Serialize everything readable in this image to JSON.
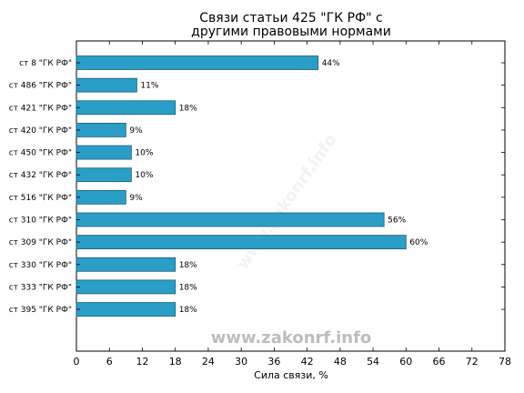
{
  "chart_data": {
    "type": "bar",
    "orientation": "horizontal",
    "title_lines": [
      "Связи статьи 425 \"ГК РФ\" с",
      "другими правовыми нормами"
    ],
    "xlabel": "Сила связи, %",
    "ylabel": "",
    "xlim": [
      0,
      78
    ],
    "xticks": [
      0,
      6,
      12,
      18,
      24,
      30,
      36,
      42,
      48,
      54,
      60,
      66,
      72,
      78
    ],
    "grid": false,
    "categories": [
      "ст 8 \"ГК РФ\"",
      "ст 486 \"ГК РФ\"",
      "ст 421 \"ГК РФ\"",
      "ст 420 \"ГК РФ\"",
      "ст 450 \"ГК РФ\"",
      "ст 432 \"ГК РФ\"",
      "ст 516 \"ГК РФ\"",
      "ст 310 \"ГК РФ\"",
      "ст 309 \"ГК РФ\"",
      "ст 330 \"ГК РФ\"",
      "ст 333 \"ГК РФ\"",
      "ст 395 \"ГК РФ\""
    ],
    "values": [
      44,
      11,
      18,
      9,
      10,
      10,
      9,
      56,
      60,
      18,
      18,
      18
    ],
    "value_labels": [
      "44%",
      "11%",
      "18%",
      "9%",
      "10%",
      "10%",
      "9%",
      "56%",
      "60%",
      "18%",
      "18%",
      "18%"
    ],
    "bar_color": "#2a9ec6",
    "bar_edge_color": "#1b5f78"
  },
  "watermark": {
    "text": "www.zakonrf.info",
    "diagonal_text": "www.zakonrf.info"
  }
}
